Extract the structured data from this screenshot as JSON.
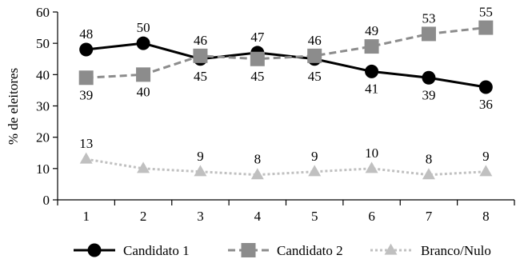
{
  "chart_data": {
    "type": "line",
    "ylabel": "% de eleitores",
    "xlabel": "",
    "title": "",
    "categories": [
      "1",
      "2",
      "3",
      "4",
      "5",
      "6",
      "7",
      "8"
    ],
    "ylim": [
      0,
      60
    ],
    "yticks": [
      "0",
      "10",
      "20",
      "30",
      "40",
      "50",
      "60"
    ],
    "grid": false,
    "legend_position": "bottom",
    "series": [
      {
        "name": "Candidato 1",
        "values": [
          48,
          50,
          45,
          47,
          45,
          41,
          39,
          36
        ],
        "labels": [
          "48",
          "50",
          "45",
          "47",
          "45",
          "41",
          "39",
          "36"
        ],
        "color": "#000000",
        "marker": "circle",
        "line_style": "solid"
      },
      {
        "name": "Candidato 2",
        "values": [
          39,
          40,
          46,
          45,
          46,
          49,
          53,
          55
        ],
        "labels": [
          "39",
          "40",
          "46",
          "45",
          "46",
          "49",
          "53",
          "55"
        ],
        "color": "#8c8c8c",
        "marker": "square",
        "line_style": "dashed"
      },
      {
        "name": "Branco/Nulo",
        "values": [
          13,
          10,
          9,
          8,
          9,
          10,
          8,
          9
        ],
        "labels": [
          "13",
          "",
          "9",
          "8",
          "9",
          "10",
          "8",
          "9"
        ],
        "color": "#c0c0c0",
        "marker": "triangle",
        "line_style": "dotted"
      }
    ]
  }
}
